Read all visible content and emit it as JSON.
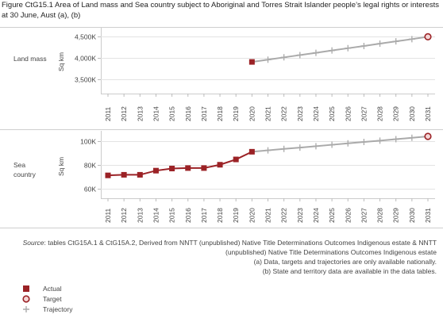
{
  "title": "Figure CtG15.1 Area of Land mass and Sea country subject to Aboriginal and Torres Strait Islander people’s legal rights or interests at 30 June, Aust (a), (b)",
  "panels": [
    {
      "label": "Land mass",
      "ylabel": "Sq km"
    },
    {
      "label_line1": "Sea",
      "label_line2": "country",
      "ylabel": "Sq km"
    }
  ],
  "source": {
    "prefix": "Source",
    "line1": ": tables CtG15A.1 & CtG15A.2, Derived from NNTT (unpublished) Native Title Determinations Outcomes Indigenous estate & NNTT",
    "line2": "(unpublished) Native Title Determinations Outcomes Indigenous estate"
  },
  "notes": [
    "(a) Data, targets and trajectories are only available nationally.",
    "(b) State and territory data are available in the data tables."
  ],
  "legend": [
    "Actual",
    "Target",
    "Trajectory"
  ],
  "colors": {
    "actual": "#9b2226",
    "trajectory": "#aaaaaa",
    "grid": "#e3e3e3"
  },
  "chart_data": [
    {
      "type": "line",
      "panel": "Land mass",
      "ylabel": "Sq km",
      "ylim": [
        3300,
        4560
      ],
      "yticks": [
        3500,
        4000,
        4500
      ],
      "ytick_labels": [
        "3,500K",
        "4,000K",
        "4,500K"
      ],
      "x": [
        2011,
        2012,
        2013,
        2014,
        2015,
        2016,
        2017,
        2018,
        2019,
        2020,
        2021,
        2022,
        2023,
        2024,
        2025,
        2026,
        2027,
        2028,
        2029,
        2030,
        2031
      ],
      "series": [
        {
          "name": "Actual",
          "x": [
            2020
          ],
          "values": [
            3910
          ]
        },
        {
          "name": "Trajectory",
          "x": [
            2020,
            2021,
            2022,
            2023,
            2024,
            2025,
            2026,
            2027,
            2028,
            2029,
            2030,
            2031
          ],
          "values": [
            3910,
            3963,
            4017,
            4070,
            4123,
            4177,
            4230,
            4283,
            4337,
            4390,
            4443,
            4497
          ]
        },
        {
          "name": "Target",
          "x": [
            2031
          ],
          "values": [
            4497
          ]
        }
      ]
    },
    {
      "type": "line",
      "panel": "Sea country",
      "ylabel": "Sq km",
      "ylim": [
        55,
        106
      ],
      "yticks": [
        60,
        80,
        100
      ],
      "ytick_labels": [
        "60K",
        "80K",
        "100K"
      ],
      "x": [
        2011,
        2012,
        2013,
        2014,
        2015,
        2016,
        2017,
        2018,
        2019,
        2020,
        2021,
        2022,
        2023,
        2024,
        2025,
        2026,
        2027,
        2028,
        2029,
        2030,
        2031
      ],
      "series": [
        {
          "name": "Actual",
          "x": [
            2011,
            2012,
            2013,
            2014,
            2015,
            2016,
            2017,
            2018,
            2019,
            2020
          ],
          "values": [
            71,
            71.5,
            71.5,
            75,
            76.8,
            77.2,
            77.2,
            80,
            84.5,
            91
          ]
        },
        {
          "name": "Trajectory",
          "x": [
            2020,
            2021,
            2022,
            2023,
            2024,
            2025,
            2026,
            2027,
            2028,
            2029,
            2030,
            2031
          ],
          "values": [
            91,
            92.2,
            93.4,
            94.5,
            95.7,
            96.9,
            98.1,
            99.3,
            100.4,
            101.6,
            102.8,
            104
          ]
        },
        {
          "name": "Target",
          "x": [
            2031
          ],
          "values": [
            104
          ]
        }
      ]
    }
  ]
}
